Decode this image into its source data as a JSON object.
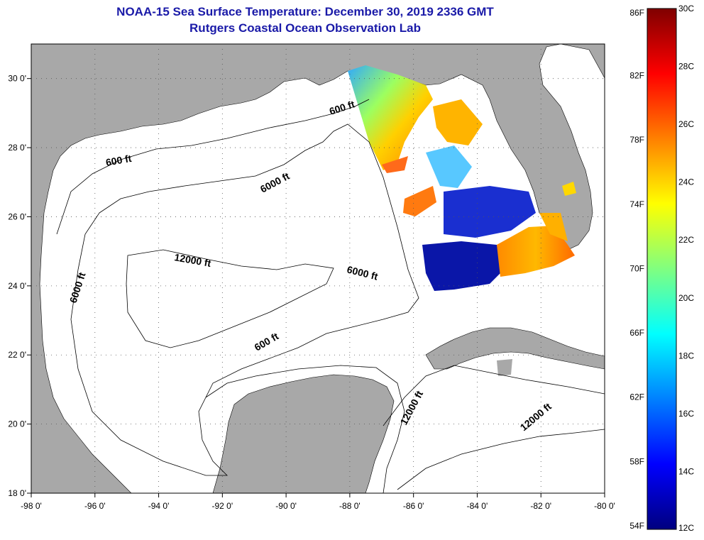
{
  "title": "NOAA-15 Sea Surface Temperature:  December 30, 2019 2336 GMT",
  "subtitle": "Rutgers Coastal Ocean Observation Lab",
  "colors": {
    "land": "#a8a8a8",
    "ocean": "#ffffff",
    "contour": "#000000",
    "title": "#1a1aa8"
  },
  "map": {
    "lon_range": [
      -98,
      -80
    ],
    "lat_range": [
      18,
      31
    ],
    "lon_ticks": [
      "-98 0'",
      "-96 0'",
      "-94 0'",
      "-92 0'",
      "-90 0'",
      "-88 0'",
      "-86 0'",
      "-84 0'",
      "-82 0'",
      "-80 0'"
    ],
    "lat_ticks": [
      "30 0'",
      "28 0'",
      "26 0'",
      "24 0'",
      "22 0'",
      "20 0'",
      "18 0'"
    ],
    "grid": "dotted",
    "contour_labels": [
      {
        "text": "600 ft"
      },
      {
        "text": "600 ft"
      },
      {
        "text": "6000 ft"
      },
      {
        "text": "12000 ft"
      },
      {
        "text": "6000 ft"
      },
      {
        "text": "6000 ft"
      },
      {
        "text": "600 ft"
      },
      {
        "text": "12000 ft"
      },
      {
        "text": "12000 ft"
      }
    ]
  },
  "colorbar": {
    "fahrenheit_labels": [
      "86F",
      "82F",
      "78F",
      "74F",
      "70F",
      "66F",
      "62F",
      "58F",
      "54F"
    ],
    "celsius_labels": [
      "30C",
      "28C",
      "26C",
      "24C",
      "22C",
      "20C",
      "18C",
      "16C",
      "14C",
      "12C"
    ],
    "range_c": [
      12,
      30
    ],
    "stops": [
      "#00007f",
      "#0000ff",
      "#0080ff",
      "#00ffff",
      "#80ff80",
      "#ffff00",
      "#ff8000",
      "#ff0000",
      "#7f0000"
    ]
  }
}
